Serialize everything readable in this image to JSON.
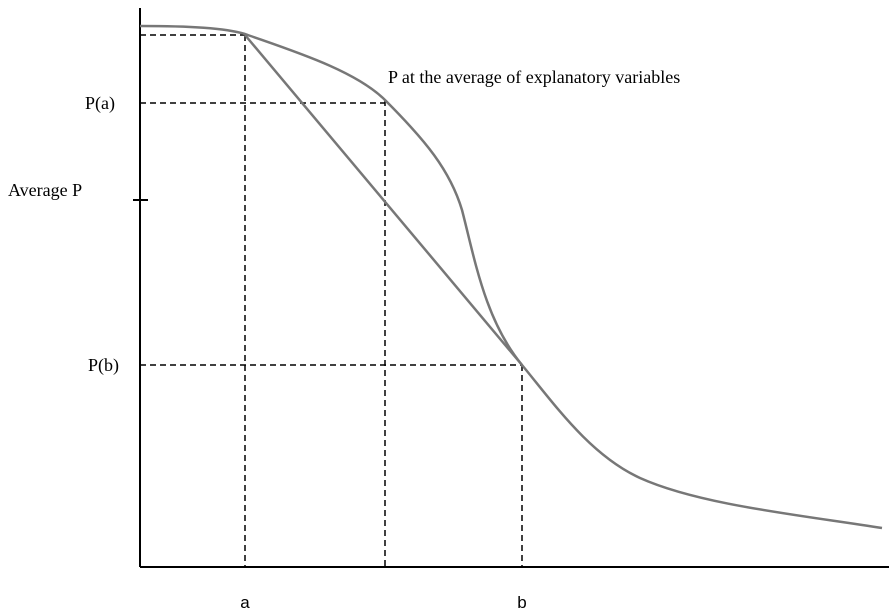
{
  "annotation": "P at the average of explanatory variables",
  "y_labels": {
    "pa": "P(a)",
    "average": "Average P",
    "pb": "P(b)"
  },
  "x_labels": {
    "a": "a",
    "b": "b"
  }
}
